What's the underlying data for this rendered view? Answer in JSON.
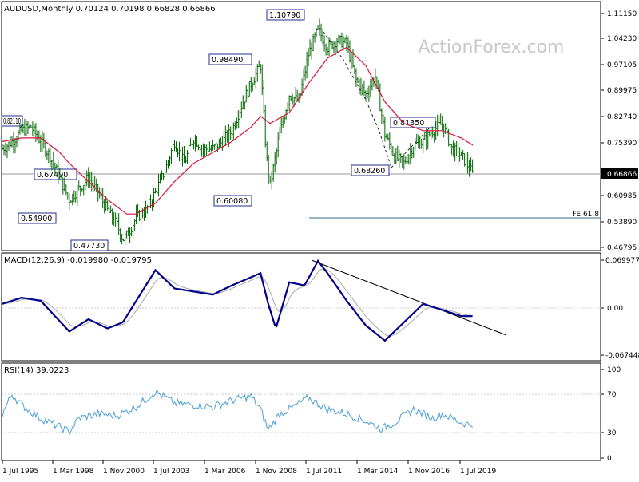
{
  "watermark": "ActionForex.com",
  "price": {
    "header": "AUDUSD,Monthly  0.70124 0.70198 0.66828 0.66866",
    "y_ticks": [
      "1.11150",
      "1.04230",
      "0.97105",
      "0.89975",
      "0.82740",
      "0.75390",
      "0.60985",
      "0.53890",
      "0.46795"
    ],
    "current": "0.66866",
    "labels": [
      "0.82110",
      "0.67490",
      "0.54900",
      "0.47730",
      "0.98490",
      "0.60080",
      "1.10790",
      "0.81350",
      "0.68260"
    ],
    "fe_label": "FE 61.8"
  },
  "macd": {
    "header": "MACD(12,26,9) -0.019980 -0.019795",
    "y_ticks": [
      "0.069977",
      "0.00",
      "-0.067448"
    ]
  },
  "rsi": {
    "header": "RSI(14) 39.0223",
    "y_ticks": [
      "100",
      "70",
      "30",
      "0"
    ]
  },
  "x_ticks": [
    "1 Jul 1995",
    "1 Mar 1998",
    "1 Nov 2000",
    "1 Jul 2003",
    "1 Mar 2006",
    "1 Nov 2008",
    "1 Jul 2011",
    "1 Mar 2014",
    "1 Nov 2016",
    "1 Jul 2019"
  ],
  "colors": {
    "ma": "#dc143c",
    "macd": "#00008b",
    "signal": "#a9a9a9",
    "rsi": "#4a9fd8",
    "bars": "#006400",
    "trend": "#000000"
  },
  "chart_data": [
    {
      "type": "line",
      "title": "AUDUSD,Monthly",
      "x_ticks": [
        "1 Jul 1995",
        "1 Mar 1998",
        "1 Nov 2000",
        "1 Jul 2003",
        "1 Mar 2006",
        "1 Nov 2008",
        "1 Jul 2011",
        "1 Mar 2014",
        "1 Nov 2016",
        "1 Jul 2019"
      ],
      "ylim": [
        0.46795,
        1.1421
      ],
      "series": [
        {
          "name": "AUDUSD",
          "x": [
            1995.0,
            1995.5,
            1996.0,
            1996.5,
            1997.0,
            1997.5,
            1998.0,
            1998.5,
            1999.0,
            1999.5,
            2000.0,
            2000.5,
            2001.0,
            2001.3,
            2001.5,
            2002.0,
            2002.5,
            2003.0,
            2003.5,
            2004.0,
            2004.5,
            2005.0,
            2005.5,
            2006.0,
            2006.5,
            2007.0,
            2007.5,
            2008.0,
            2008.5,
            2008.8,
            2009.0,
            2009.5,
            2010.0,
            2010.5,
            2011.0,
            2011.5,
            2012.0,
            2012.5,
            2013.0,
            2013.5,
            2014.0,
            2014.5,
            2015.0,
            2015.5,
            2016.0,
            2016.5,
            2017.0,
            2017.5,
            2018.0,
            2018.5,
            2019.0,
            2019.4,
            2019.6
          ],
          "y": [
            0.74,
            0.76,
            0.79,
            0.8,
            0.76,
            0.72,
            0.66,
            0.6,
            0.63,
            0.66,
            0.62,
            0.57,
            0.53,
            0.49,
            0.5,
            0.55,
            0.57,
            0.62,
            0.68,
            0.76,
            0.7,
            0.77,
            0.74,
            0.74,
            0.76,
            0.79,
            0.86,
            0.92,
            0.97,
            0.72,
            0.64,
            0.78,
            0.89,
            0.87,
            1.0,
            1.07,
            1.02,
            1.04,
            1.03,
            0.93,
            0.89,
            0.94,
            0.78,
            0.72,
            0.7,
            0.75,
            0.76,
            0.79,
            0.81,
            0.74,
            0.72,
            0.69,
            0.67
          ]
        },
        {
          "name": "MA",
          "x": [
            1995.0,
            1996.0,
            1997.0,
            1998.0,
            1998.5,
            1999.5,
            2000.5,
            2001.5,
            2002.0,
            2003.0,
            2004.0,
            2005.0,
            2006.0,
            2007.0,
            2008.0,
            2008.5,
            2009.0,
            2010.0,
            2011.0,
            2012.0,
            2013.0,
            2014.0,
            2015.0,
            2016.0,
            2017.0,
            2018.0,
            2019.0,
            2019.6
          ],
          "y": [
            0.76,
            0.77,
            0.77,
            0.73,
            0.7,
            0.65,
            0.6,
            0.56,
            0.56,
            0.59,
            0.65,
            0.7,
            0.73,
            0.76,
            0.8,
            0.83,
            0.81,
            0.84,
            0.92,
            0.99,
            1.02,
            0.97,
            0.87,
            0.81,
            0.79,
            0.79,
            0.77,
            0.75
          ]
        }
      ]
    },
    {
      "type": "line",
      "title": "MACD(12,26,9)",
      "ylim": [
        -0.09,
        0.079
      ],
      "series": [
        {
          "name": "MACD",
          "x": [
            1995.0,
            1996.0,
            1997.0,
            1998.5,
            1999.5,
            2000.5,
            2001.3,
            2002.0,
            2003.0,
            2004.0,
            2005.0,
            2006.0,
            2007.0,
            2008.5,
            2008.9,
            2009.3,
            2010.0,
            2010.8,
            2011.5,
            2012.0,
            2013.0,
            2014.0,
            2015.0,
            2016.0,
            2017.0,
            2018.0,
            2019.0,
            2019.6
          ],
          "y": [
            0.0,
            0.01,
            0.005,
            -0.045,
            -0.025,
            -0.04,
            -0.03,
            0.005,
            0.055,
            0.025,
            0.02,
            0.015,
            0.03,
            0.05,
            0.0,
            -0.04,
            0.035,
            0.03,
            0.07,
            0.05,
            0.005,
            -0.035,
            -0.06,
            -0.03,
            0.0,
            -0.01,
            -0.02,
            -0.02
          ]
        }
      ]
    },
    {
      "type": "line",
      "title": "RSI(14)",
      "ylim": [
        0,
        100
      ],
      "series": [
        {
          "name": "RSI",
          "x": [
            1995.0,
            1995.5,
            1996.0,
            1997.0,
            1998.0,
            1998.5,
            1999.0,
            2000.0,
            2001.0,
            2002.0,
            2003.0,
            2004.0,
            2005.0,
            2006.0,
            2007.0,
            2008.0,
            2008.5,
            2008.9,
            2009.5,
            2010.0,
            2011.0,
            2012.0,
            2013.0,
            2014.0,
            2014.8,
            2015.5,
            2016.5,
            2017.5,
            2018.0,
            2019.0,
            2019.4,
            2019.6
          ],
          "y": [
            50,
            72,
            60,
            45,
            35,
            30,
            45,
            50,
            48,
            58,
            75,
            62,
            60,
            58,
            65,
            70,
            55,
            32,
            50,
            55,
            68,
            55,
            50,
            42,
            33,
            40,
            55,
            45,
            50,
            40,
            38,
            39
          ]
        }
      ]
    }
  ]
}
